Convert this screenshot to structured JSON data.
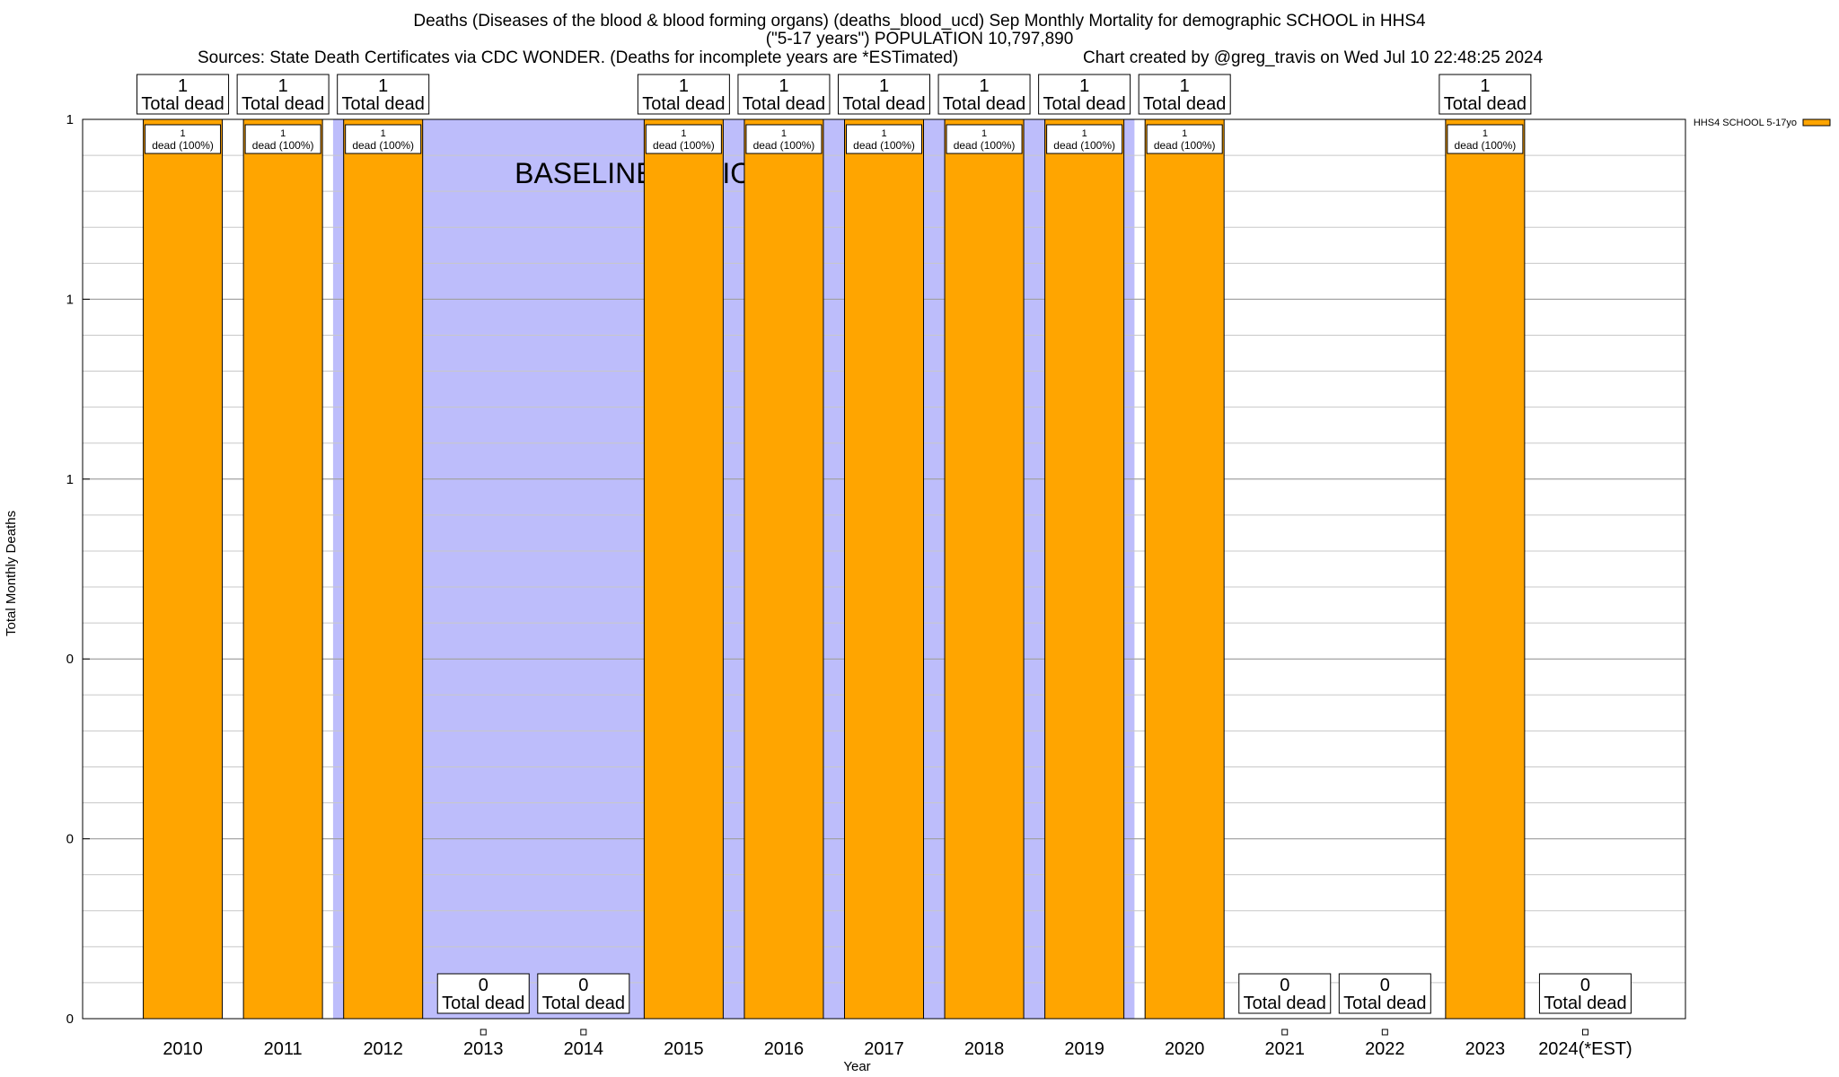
{
  "title": {
    "line1": "Deaths (Diseases of the blood & blood forming organs) (deaths_blood_ucd) Sep Monthly Mortality for demographic SCHOOL in HHS4",
    "line2": "(\"5-17 years\") POPULATION 10,797,890",
    "sources": "Sources: State Death Certificates via CDC WONDER. (Deaths for incomplete years are *ESTimated)",
    "credit": "Chart created by @greg_travis on Wed Jul 10 22:48:25 2024"
  },
  "colors": {
    "bar": "#FFA500",
    "baseline": "#BDBDFB",
    "grid": "#C8C8C8"
  },
  "chart_data": {
    "type": "bar",
    "xlabel": "Year",
    "ylabel": "Total Monthly Deaths",
    "ylim": [
      0,
      1
    ],
    "y_tick_labels": [
      "0",
      "0",
      "0",
      "1",
      "1",
      "1"
    ],
    "baseline_label": "BASELINE PERIOD",
    "baseline_range": [
      "2012",
      "2019"
    ],
    "categories": [
      "2010",
      "2011",
      "2012",
      "2013",
      "2014",
      "2015",
      "2016",
      "2017",
      "2018",
      "2019",
      "2020",
      "2021",
      "2022",
      "2023",
      "2024(*EST)"
    ],
    "series": [
      {
        "name": "HHS4 SCHOOL 5-17yo",
        "values": [
          1,
          1,
          1,
          0,
          0,
          1,
          1,
          1,
          1,
          1,
          1,
          0,
          0,
          1,
          0
        ]
      }
    ],
    "top_labels": [
      "1\nTotal dead",
      "1\nTotal dead",
      "1\nTotal dead",
      "0\nTotal dead",
      "0\nTotal dead",
      "1\nTotal dead",
      "1\nTotal dead",
      "1\nTotal dead",
      "1\nTotal dead",
      "1\nTotal dead",
      "1\nTotal dead",
      "0\nTotal dead",
      "0\nTotal dead",
      "1\nTotal dead",
      "0\nTotal dead"
    ],
    "inner_labels": [
      "1\ndead (100%)",
      "1\ndead (100%)",
      "1\ndead (100%)",
      "",
      "",
      "1\ndead (100%)",
      "1\ndead (100%)",
      "1\ndead (100%)",
      "1\ndead (100%)",
      "1\ndead (100%)",
      "1\ndead (100%)",
      "",
      "",
      "1\ndead (100%)",
      ""
    ],
    "legend": "HHS4 SCHOOL 5-17yo",
    "legend_position": "top-right",
    "grid": true
  }
}
